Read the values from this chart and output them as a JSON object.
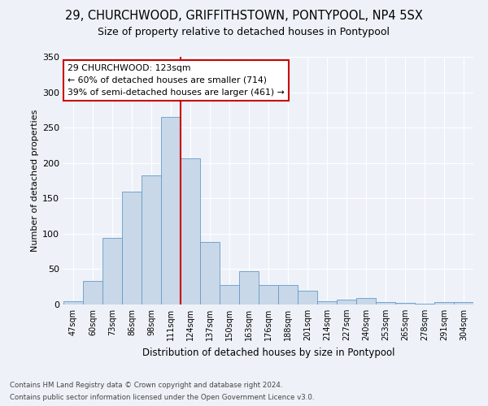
{
  "title1": "29, CHURCHWOOD, GRIFFITHSTOWN, PONTYPOOL, NP4 5SX",
  "title2": "Size of property relative to detached houses in Pontypool",
  "xlabel": "Distribution of detached houses by size in Pontypool",
  "ylabel": "Number of detached properties",
  "categories": [
    "47sqm",
    "60sqm",
    "73sqm",
    "86sqm",
    "98sqm",
    "111sqm",
    "124sqm",
    "137sqm",
    "150sqm",
    "163sqm",
    "176sqm",
    "188sqm",
    "201sqm",
    "214sqm",
    "227sqm",
    "240sqm",
    "253sqm",
    "265sqm",
    "278sqm",
    "291sqm",
    "304sqm"
  ],
  "bar_heights": [
    5,
    33,
    94,
    160,
    183,
    265,
    207,
    88,
    27,
    47,
    27,
    27,
    20,
    5,
    7,
    9,
    4,
    2,
    1,
    4,
    3
  ],
  "bar_color": "#c8d8e8",
  "bar_edge_color": "#6699cc",
  "vline_color": "#cc0000",
  "annotation_text": "29 CHURCHWOOD: 123sqm\n← 60% of detached houses are smaller (714)\n39% of semi-detached houses are larger (461) →",
  "annotation_box_color": "#ffffff",
  "annotation_box_edge": "#cc0000",
  "ylim": [
    0,
    350
  ],
  "yticks": [
    0,
    50,
    100,
    150,
    200,
    250,
    300,
    350
  ],
  "background_color": "#eef2f8",
  "grid_color": "#ffffff",
  "footer1": "Contains HM Land Registry data © Crown copyright and database right 2024.",
  "footer2": "Contains public sector information licensed under the Open Government Licence v3.0."
}
